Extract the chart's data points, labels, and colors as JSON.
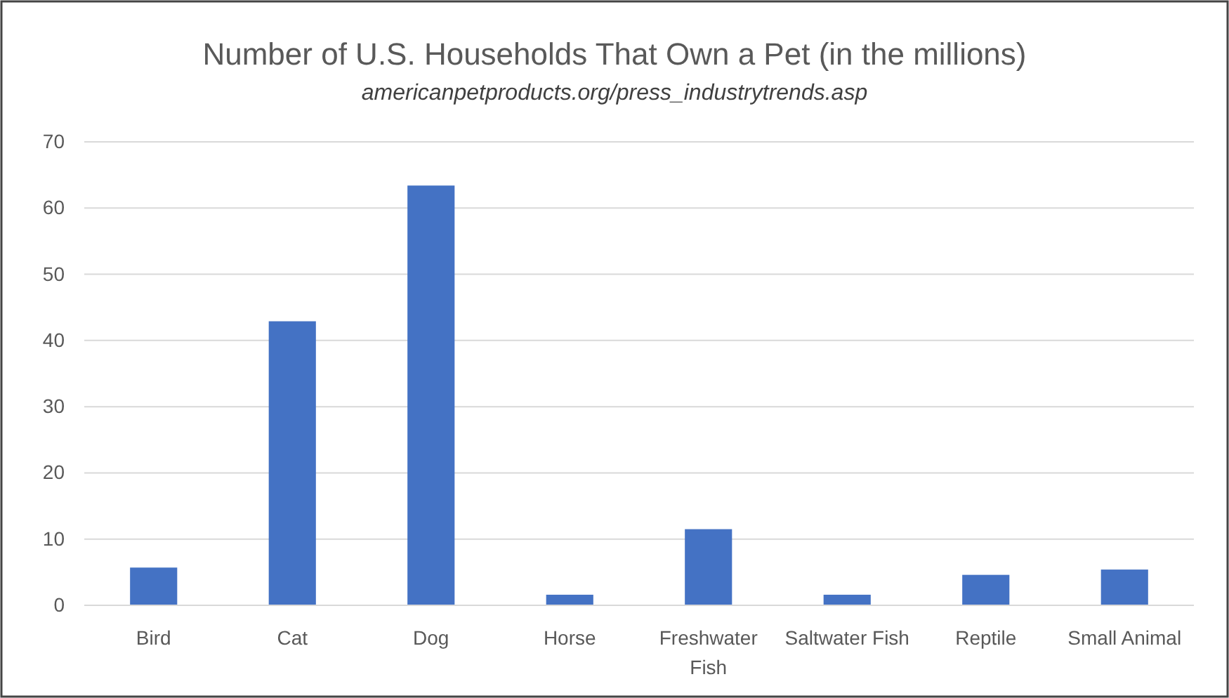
{
  "chart_data": {
    "type": "bar",
    "title": "Number of U.S. Households That Own a Pet (in the millions)",
    "subtitle": "americanpetproducts.org/press_industrytrends.asp",
    "categories": [
      "Bird",
      "Cat",
      "Dog",
      "Horse",
      "Freshwater Fish",
      "Saltwater Fish",
      "Reptile",
      "Small Animal"
    ],
    "values": [
      5.7,
      42.9,
      63.4,
      1.6,
      11.5,
      1.6,
      4.6,
      5.4
    ],
    "color": "#4472c4",
    "ylim": [
      0,
      70
    ],
    "yticks": [
      0,
      10,
      20,
      30,
      40,
      50,
      60,
      70
    ],
    "grid": "y"
  }
}
